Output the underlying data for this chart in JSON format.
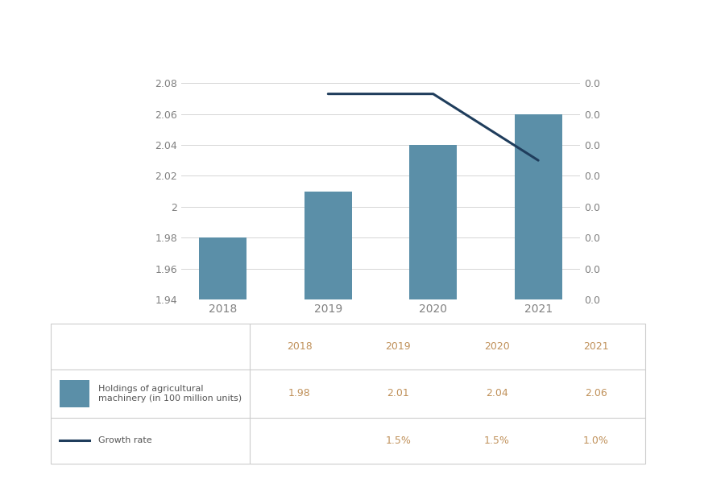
{
  "years": [
    "2018",
    "2019",
    "2020",
    "2021"
  ],
  "bar_values": [
    1.98,
    2.01,
    2.04,
    2.06
  ],
  "bar_color": "#5b8fa8",
  "growth_rate_years": [
    "2019",
    "2020",
    "2021"
  ],
  "growth_rate_line_y": [
    2.073,
    2.073,
    2.03
  ],
  "line_color": "#1f3d5c",
  "ylim_left": [
    1.94,
    2.09
  ],
  "left_yticks": [
    1.94,
    1.96,
    1.98,
    2.0,
    2.02,
    2.04,
    2.06,
    2.08
  ],
  "left_ytick_labels": [
    "1.94",
    "1.96",
    "1.98",
    "2",
    "2.02",
    "2.04",
    "2.06",
    "2.08"
  ],
  "legend_bar_label": "Holdings of agricultural\nmachinery (in 100 million units)",
  "legend_line_label": "Growth rate",
  "table_years": [
    "2018",
    "2019",
    "2020",
    "2021"
  ],
  "table_bar_values": [
    "1.98",
    "2.01",
    "2.04",
    "2.06"
  ],
  "table_growth_values": [
    "",
    "1.5%",
    "1.5%",
    "1.0%"
  ],
  "background_color": "#ffffff",
  "grid_color": "#d5d5d5",
  "tick_label_color": "#808080",
  "table_text_color": "#c0915a",
  "label_text_color": "#555555",
  "border_color": "#cccccc",
  "figsize": [
    9.0,
    6.0
  ],
  "dpi": 100
}
